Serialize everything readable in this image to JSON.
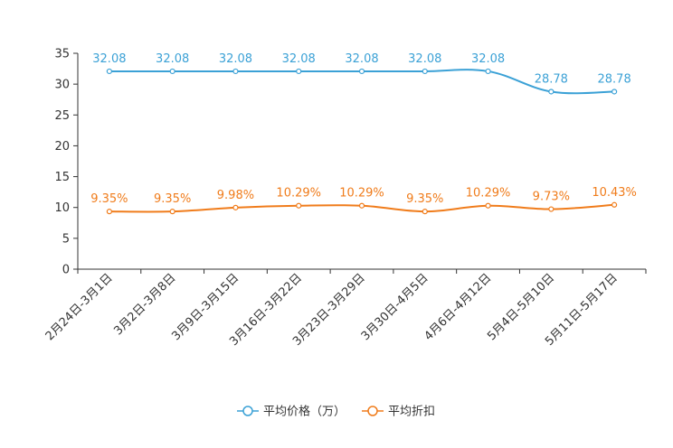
{
  "chart_data": {
    "type": "line",
    "categories": [
      "2月24日-3月1日",
      "3月2日-3月8日",
      "3月9日-3月15日",
      "3月16日-3月22日",
      "3月23日-3月29日",
      "3月30日-4月5日",
      "4月6日-4月12日",
      "5月4日-5月10日",
      "5月11日-5月17日"
    ],
    "ylim": [
      0,
      35
    ],
    "yticks": [
      "0",
      "5",
      "10",
      "15",
      "20",
      "25",
      "30",
      "35"
    ],
    "series": [
      {
        "name": "平均价格（万）",
        "color": "#3ba1d6",
        "values": [
          32.08,
          32.08,
          32.08,
          32.08,
          32.08,
          32.08,
          32.08,
          28.78,
          28.78
        ],
        "labels": [
          "32.08",
          "32.08",
          "32.08",
          "32.08",
          "32.08",
          "32.08",
          "32.08",
          "28.78",
          "28.78"
        ]
      },
      {
        "name": "平均折扣",
        "color": "#f07c1b",
        "values": [
          9.35,
          9.35,
          9.98,
          10.29,
          10.29,
          9.35,
          10.29,
          9.73,
          10.43
        ],
        "labels": [
          "9.35%",
          "9.35%",
          "9.98%",
          "10.29%",
          "10.29%",
          "9.35%",
          "10.29%",
          "9.73%",
          "10.43%"
        ]
      }
    ]
  }
}
